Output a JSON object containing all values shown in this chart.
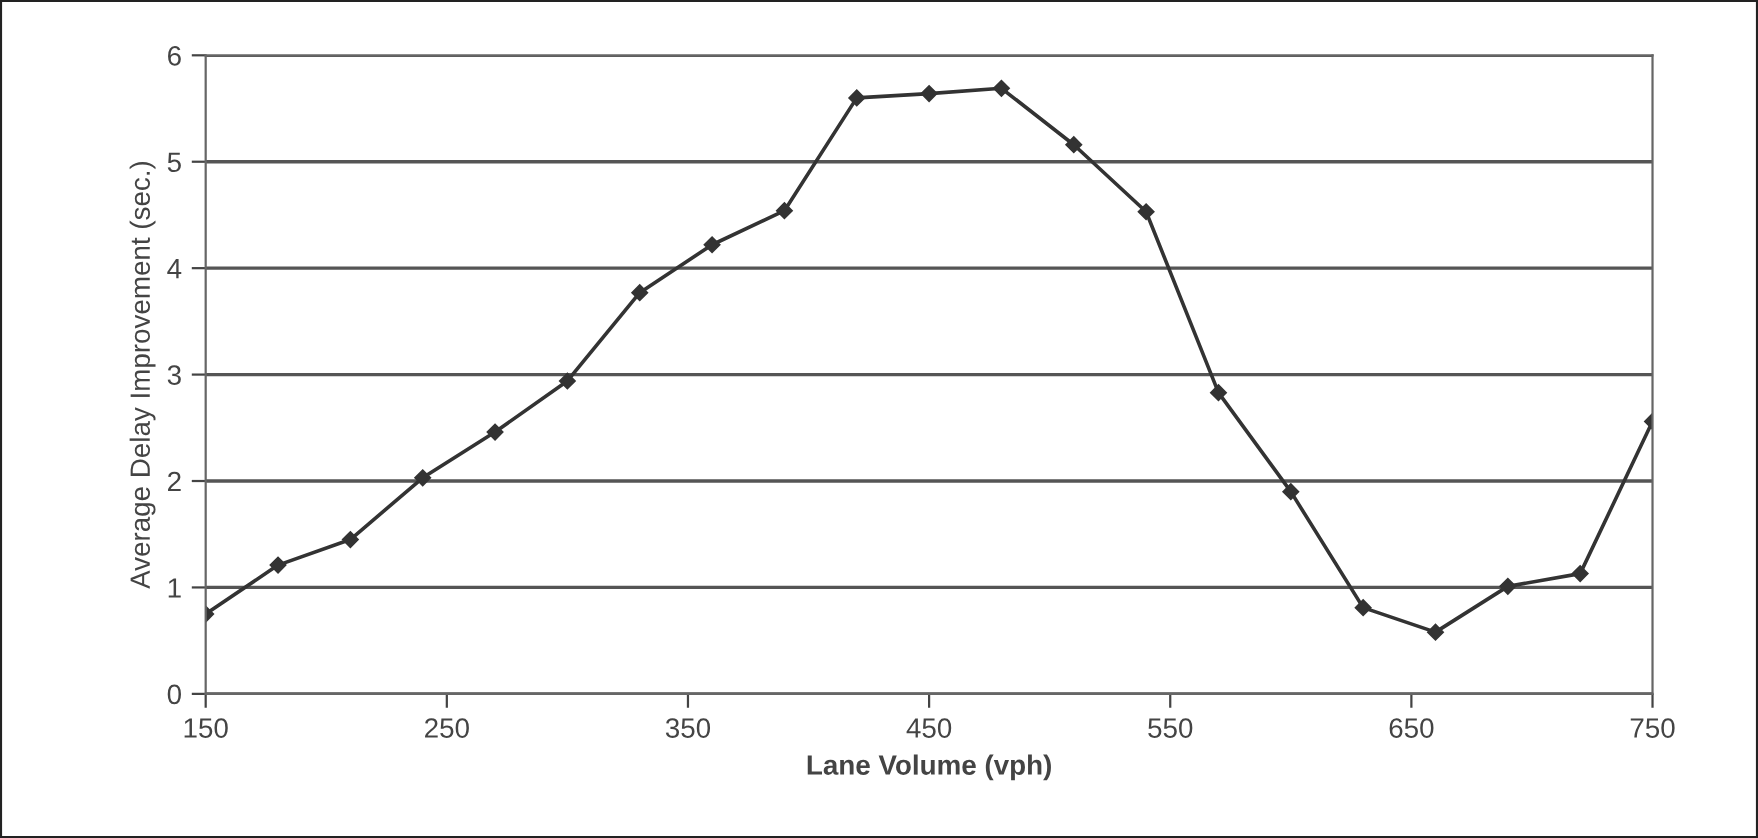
{
  "chart_data": {
    "type": "line",
    "xlabel": "Lane Volume (vph)",
    "ylabel": "Average Delay Improvement (sec.)",
    "x": [
      150,
      180,
      210,
      240,
      270,
      300,
      330,
      360,
      390,
      420,
      450,
      480,
      510,
      540,
      570,
      600,
      630,
      660,
      690,
      720,
      750
    ],
    "series": [
      {
        "color": "#333333",
        "values": [
          0.75,
          1.21,
          1.45,
          2.03,
          2.46,
          2.94,
          3.77,
          4.22,
          4.54,
          5.6,
          5.64,
          5.69,
          5.16,
          4.53,
          2.83,
          1.9,
          0.81,
          0.58,
          1.01,
          1.13,
          2.56
        ]
      }
    ],
    "xlim": [
      150,
      750
    ],
    "xticks": [
      150,
      250,
      350,
      450,
      550,
      650,
      750
    ],
    "ylim": [
      0,
      6
    ],
    "yticks": [
      0,
      1,
      2,
      3,
      4,
      5,
      6
    ],
    "grid": "y",
    "marker": "diamond",
    "line_style": "solid",
    "legend": false
  }
}
